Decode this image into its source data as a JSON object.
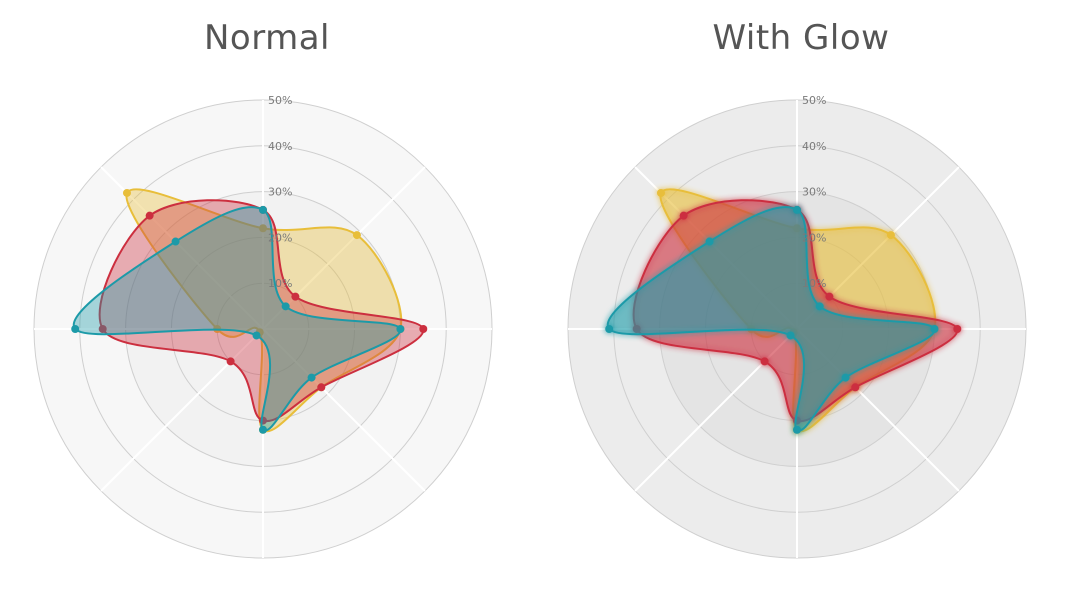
{
  "chart_data": [
    {
      "type": "radar",
      "title": "Normal",
      "glow": false,
      "categories_count": 8,
      "r_ticks": [
        "10%",
        "20%",
        "30%",
        "40%",
        "50%"
      ],
      "rlim": [
        0,
        50
      ],
      "grid": true,
      "background": {
        "outer": "#f7f7f7",
        "inner": "#f2f2f2"
      },
      "series": [
        {
          "color": "#e8be3a",
          "values": [
            22,
            29,
            30,
            18,
            22,
            1,
            10,
            42
          ]
        },
        {
          "color": "#cc2f3f",
          "values": [
            26,
            10,
            35,
            18,
            20,
            10,
            35,
            35
          ]
        },
        {
          "color": "#1c9aa8",
          "values": [
            26,
            7,
            30,
            15,
            22,
            2,
            41,
            27
          ]
        }
      ]
    },
    {
      "type": "radar",
      "title": "With Glow",
      "glow": true,
      "categories_count": 8,
      "r_ticks": [
        "10%",
        "20%",
        "30%",
        "40%",
        "50%"
      ],
      "rlim": [
        0,
        50
      ],
      "grid": true,
      "background": {
        "outer": "#ececec",
        "inner": "#e4e4e4"
      },
      "series": [
        {
          "color": "#e8be3a",
          "values": [
            22,
            29,
            30,
            18,
            22,
            1,
            10,
            42
          ]
        },
        {
          "color": "#cc2f3f",
          "values": [
            26,
            10,
            35,
            18,
            20,
            10,
            35,
            35
          ]
        },
        {
          "color": "#1c9aa8",
          "values": [
            26,
            7,
            30,
            15,
            22,
            2,
            41,
            27
          ]
        }
      ]
    }
  ]
}
